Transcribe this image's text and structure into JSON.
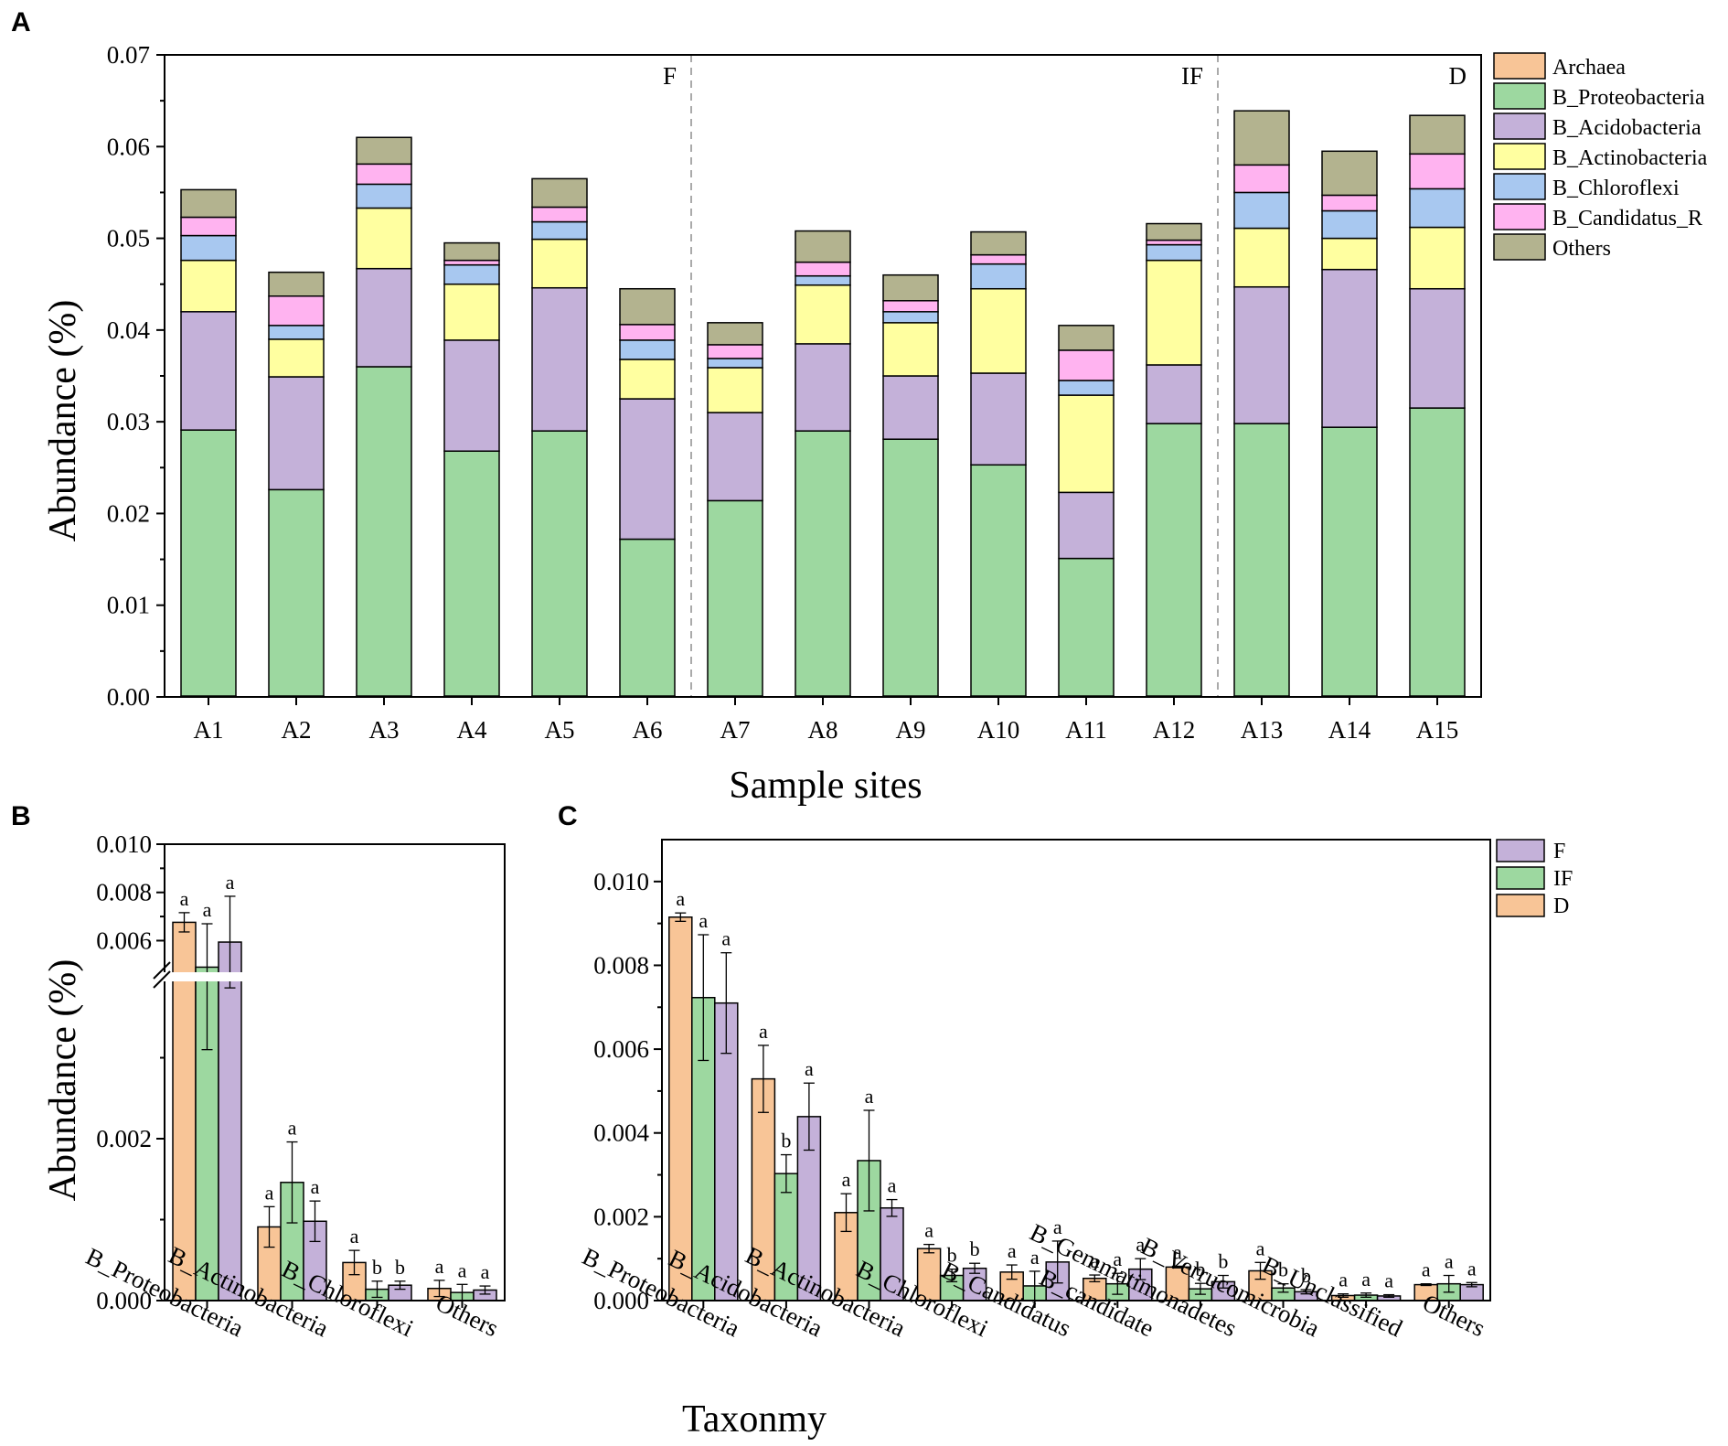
{
  "panels": [
    {
      "letter": "A"
    },
    {
      "letter": "B"
    },
    {
      "letter": "C"
    }
  ],
  "chart_data": [
    {
      "type": "bar",
      "stacked": true,
      "title": "",
      "xlabel": "Sample sites",
      "ylabel": "Abundance (%)",
      "ylim": [
        0,
        0.07
      ],
      "yticks": [
        "0.00",
        "0.01",
        "0.02",
        "0.03",
        "0.04",
        "0.05",
        "0.06",
        "0.07"
      ],
      "categories": [
        "A1",
        "A2",
        "A3",
        "A4",
        "A5",
        "A6",
        "A7",
        "A8",
        "A9",
        "A10",
        "A11",
        "A12",
        "A13",
        "A14",
        "A15"
      ],
      "group_labels": [
        {
          "label": "F",
          "after_index": 5
        },
        {
          "label": "IF",
          "after_index": 11
        },
        {
          "label": "D",
          "after_index": 14
        }
      ],
      "legend_position": "right",
      "series": [
        {
          "name": "Archaea",
          "color": "#F8C597",
          "values": [
            0.0001,
            0.0001,
            0.0001,
            0.0001,
            0.0001,
            0.0001,
            0.0001,
            0.0001,
            0.0001,
            0.0001,
            0.0001,
            0.0001,
            0.0001,
            0.0001,
            0.0001
          ]
        },
        {
          "name": "B_Proteobacteria",
          "color": "#9DD8A0",
          "values": [
            0.029,
            0.0225,
            0.0359,
            0.0267,
            0.0289,
            0.0171,
            0.0213,
            0.0289,
            0.028,
            0.0252,
            0.015,
            0.0297,
            0.0297,
            0.0293,
            0.0314
          ]
        },
        {
          "name": "B_Acidobacteria",
          "color": "#C4B1D9",
          "values": [
            0.0129,
            0.0123,
            0.0107,
            0.0121,
            0.0156,
            0.0153,
            0.0096,
            0.0095,
            0.0069,
            0.01,
            0.0072,
            0.0064,
            0.0149,
            0.0172,
            0.013
          ]
        },
        {
          "name": "B_Actinobacteria",
          "color": "#FFFFA0",
          "values": [
            0.0056,
            0.0041,
            0.0066,
            0.0061,
            0.0053,
            0.0043,
            0.0049,
            0.0064,
            0.0058,
            0.0092,
            0.0106,
            0.0114,
            0.0064,
            0.0034,
            0.0067
          ]
        },
        {
          "name": "B_Chloroflexi",
          "color": "#A8C8F0",
          "values": [
            0.0027,
            0.0015,
            0.0026,
            0.0021,
            0.0019,
            0.0021,
            0.001,
            0.001,
            0.0012,
            0.0027,
            0.0016,
            0.0017,
            0.0039,
            0.003,
            0.0042
          ]
        },
        {
          "name": "B_Candidatus_R",
          "color": "#FFB3F0",
          "values": [
            0.002,
            0.0032,
            0.0022,
            0.0005,
            0.0016,
            0.0017,
            0.0015,
            0.0015,
            0.0012,
            0.001,
            0.0033,
            0.0005,
            0.003,
            0.0017,
            0.0038
          ]
        },
        {
          "name": "Others",
          "color": "#B3B38F",
          "values": [
            0.003,
            0.0026,
            0.0029,
            0.0019,
            0.0031,
            0.0039,
            0.0024,
            0.0034,
            0.0028,
            0.0025,
            0.0027,
            0.0018,
            0.0059,
            0.0048,
            0.0042
          ]
        }
      ]
    },
    {
      "type": "bar",
      "broken_axis": true,
      "xlabel": "",
      "ylabel": "Abundance (%)",
      "yticks": [
        "0.000",
        "0.002",
        "0.006",
        "0.008",
        "0.010"
      ],
      "categories": [
        "B_Proteobacteria",
        "B_Actinobacteria",
        "B_Chloroflexi",
        "Others"
      ],
      "series": [
        {
          "name": "D",
          "color": "#F8C597",
          "values": [
            0.00676,
            0.00091,
            0.00047,
            0.00015
          ],
          "errors": [
            0.0004,
            0.00025,
            0.00015,
            0.0001
          ],
          "letters": [
            "a",
            "a",
            "a",
            "a"
          ]
        },
        {
          "name": "IF",
          "color": "#9DD8A0",
          "values": [
            0.0049,
            0.00146,
            0.00014,
            0.0001
          ],
          "errors": [
            0.0018,
            0.0005,
            0.0001,
            0.0001
          ],
          "letters": [
            "a",
            "a",
            "b",
            "a"
          ]
        },
        {
          "name": "F",
          "color": "#C4B1D9",
          "values": [
            0.00594,
            0.00098,
            0.00019,
            0.00013
          ],
          "errors": [
            0.0019,
            0.00025,
            5e-05,
            5e-05
          ],
          "letters": [
            "a",
            "a",
            "b",
            "a"
          ]
        }
      ]
    },
    {
      "type": "bar",
      "xlabel": "Taxonmy",
      "ylabel": "",
      "ylim": [
        0,
        0.011
      ],
      "yticks": [
        "0.000",
        "0.002",
        "0.004",
        "0.006",
        "0.008",
        "0.010"
      ],
      "legend_position": "top-right",
      "legend_order": [
        "F",
        "IF",
        "D"
      ],
      "categories": [
        "B_Proteobacteria",
        "B_Acidobacteria",
        "B_Actinobacteria",
        "B_Chloroflexi",
        "B_Candidatus",
        "B_candidate",
        "B_Gemmatimonadetes",
        "B_Verrucomicrobia",
        "B_Unclassified",
        "Others"
      ],
      "series": [
        {
          "name": "D",
          "color": "#F8C597",
          "values": [
            0.00915,
            0.00529,
            0.0021,
            0.00124,
            0.00068,
            0.00053,
            0.0008,
            0.00071,
            0.00012,
            0.00038
          ],
          "errors": [
            0.0001,
            0.0008,
            0.00045,
            0.0001,
            0.00017,
            8e-05,
            2e-05,
            0.0002,
            4e-05,
            2e-05
          ],
          "letters": [
            "a",
            "a",
            "a",
            "a",
            "a",
            "a",
            "a",
            "a",
            "a",
            "a"
          ]
        },
        {
          "name": "IF",
          "color": "#9DD8A0",
          "values": [
            0.00723,
            0.00303,
            0.00334,
            0.0006,
            0.00035,
            0.0004,
            0.00028,
            0.0003,
            0.00013,
            0.0004
          ],
          "errors": [
            0.0015,
            0.00045,
            0.0012,
            0.00015,
            0.00035,
            0.00025,
            0.00013,
            0.0001,
            5e-05,
            0.0002
          ],
          "letters": [
            "a",
            "b",
            "a",
            "b",
            "a",
            "a",
            "b",
            "b",
            "a",
            "a"
          ]
        },
        {
          "name": "F",
          "color": "#C4B1D9",
          "values": [
            0.0071,
            0.00439,
            0.00221,
            0.00077,
            0.00092,
            0.00075,
            0.00045,
            0.00021,
            0.00011,
            0.00038
          ],
          "errors": [
            0.0012,
            0.0008,
            0.0002,
            0.00012,
            0.0005,
            0.00025,
            0.00015,
            5e-05,
            3e-05,
            5e-05
          ],
          "letters": [
            "a",
            "a",
            "a",
            "b",
            "a",
            "a",
            "b",
            "b",
            "a",
            "a"
          ]
        }
      ]
    }
  ]
}
